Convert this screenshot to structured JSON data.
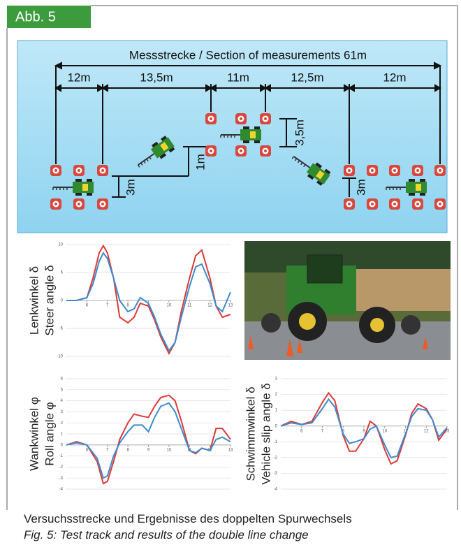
{
  "header": {
    "label": "Abb. 5"
  },
  "diagram": {
    "title": "Messstrecke / Section of measurements 61m",
    "segments": [
      "12m",
      "13,5m",
      "11m",
      "12,5m",
      "12m"
    ],
    "offsets": [
      "3m",
      "1m",
      "3,5m",
      "3m"
    ]
  },
  "chart_data": [
    {
      "type": "line",
      "ylabel": [
        "Lenkwinkel δ",
        "Steer angle δ"
      ],
      "x": [
        5,
        5.5,
        6,
        6.3,
        6.6,
        6.8,
        7,
        7.3,
        7.6,
        8,
        8.3,
        8.6,
        9,
        9.3,
        9.6,
        10,
        10.3,
        10.6,
        11,
        11.3,
        11.6,
        12,
        12.3,
        12.6,
        13
      ],
      "series": [
        {
          "color": "#dd3b36",
          "values": [
            0,
            0,
            0.5,
            4,
            8.5,
            9.8,
            8.5,
            4,
            -3,
            -4,
            -3,
            -0.5,
            -1,
            -3.5,
            -6.5,
            -9.5,
            -7.5,
            -2,
            4,
            8,
            9,
            4,
            -1,
            -3,
            -2.5
          ]
        },
        {
          "color": "#3b8cd0",
          "values": [
            0,
            0,
            0.5,
            3,
            7,
            8.5,
            7.5,
            4,
            0,
            -2,
            -1.5,
            0.5,
            -0.5,
            -3,
            -6,
            -9,
            -7.5,
            -3,
            2.5,
            6,
            6.5,
            3,
            -1,
            -2,
            1.5
          ]
        }
      ],
      "xlim": [
        5,
        13
      ],
      "xticks": [
        6,
        7,
        8,
        9,
        10,
        11,
        12,
        13
      ],
      "ylim": [
        -10,
        10
      ],
      "yticks": [
        10,
        5,
        0,
        -5,
        -10
      ],
      "grid": true
    },
    {
      "type": "line",
      "ylabel": [
        "Wankwinkel φ",
        "Roll angle φ"
      ],
      "x": [
        5,
        5.5,
        6,
        6.5,
        6.8,
        7,
        7.3,
        7.6,
        8,
        8.3,
        8.7,
        9,
        9.3,
        9.6,
        10,
        10.3,
        10.6,
        11,
        11.3,
        11.6,
        12,
        12.3,
        12.6,
        13
      ],
      "series": [
        {
          "color": "#dd3b36",
          "values": [
            0,
            0.3,
            0,
            -1.5,
            -3.5,
            -3.3,
            -1.5,
            0.5,
            2,
            2.8,
            2.6,
            2.5,
            3.5,
            4.3,
            4.5,
            4,
            2.2,
            -0.5,
            -0.8,
            -0.3,
            -0.5,
            1.5,
            1.5,
            0.5
          ]
        },
        {
          "color": "#3b8cd0",
          "values": [
            0,
            0.2,
            0,
            -1.2,
            -3,
            -2.8,
            -1,
            0.2,
            1.2,
            1.8,
            1.8,
            1.2,
            2.5,
            3.5,
            3.8,
            3,
            1.5,
            -0.5,
            -0.7,
            -0.3,
            -0.5,
            0.5,
            0.7,
            0.3
          ]
        }
      ],
      "xlim": [
        5,
        13
      ],
      "xticks": [
        6,
        7,
        8,
        9,
        10,
        11,
        12,
        13
      ],
      "ylim": [
        -4,
        6
      ],
      "yticks": [
        6,
        5,
        4,
        3,
        2,
        1,
        0,
        -1,
        -2,
        -3,
        -4
      ],
      "grid": true
    },
    {
      "type": "line",
      "ylabel": [
        "Schwimmwinkel δ",
        "Vehicle slip angle δ"
      ],
      "x": [
        5,
        5.5,
        6,
        6.5,
        7,
        7.3,
        7.6,
        8,
        8.3,
        8.6,
        9,
        9.3,
        9.6,
        10,
        10.3,
        10.6,
        11,
        11.3,
        11.6,
        12,
        12.3,
        12.6,
        13
      ],
      "series": [
        {
          "color": "#dd3b36",
          "values": [
            0,
            0.3,
            0.1,
            0.3,
            1.5,
            2.1,
            1.6,
            -0.6,
            -1.6,
            -1.6,
            -0.8,
            0.3,
            0,
            -1.5,
            -2.4,
            -2.2,
            -0.6,
            0.8,
            1.4,
            1.1,
            0.4,
            -0.9,
            -0.2
          ]
        },
        {
          "color": "#3b8cd0",
          "values": [
            0,
            0.2,
            0.1,
            0.2,
            1.1,
            1.7,
            1.2,
            -0.5,
            -1.1,
            -1,
            -0.8,
            -0.2,
            0,
            -1.2,
            -2,
            -1.9,
            -0.5,
            0.6,
            1.1,
            1,
            0.4,
            -0.7,
            -0.1
          ]
        }
      ],
      "xlim": [
        5,
        13
      ],
      "xticks": [
        6,
        7,
        8,
        9,
        10,
        11,
        12,
        13
      ],
      "ylim": [
        -4,
        3
      ],
      "yticks": [
        3,
        2,
        1,
        0,
        -1,
        -2,
        -3,
        -4
      ],
      "grid": true
    }
  ],
  "caption": {
    "de": "Versuchsstrecke und Ergebnisse des doppelten Spurwechsels",
    "en": "Fig. 5: Test track and results of the double line change"
  }
}
